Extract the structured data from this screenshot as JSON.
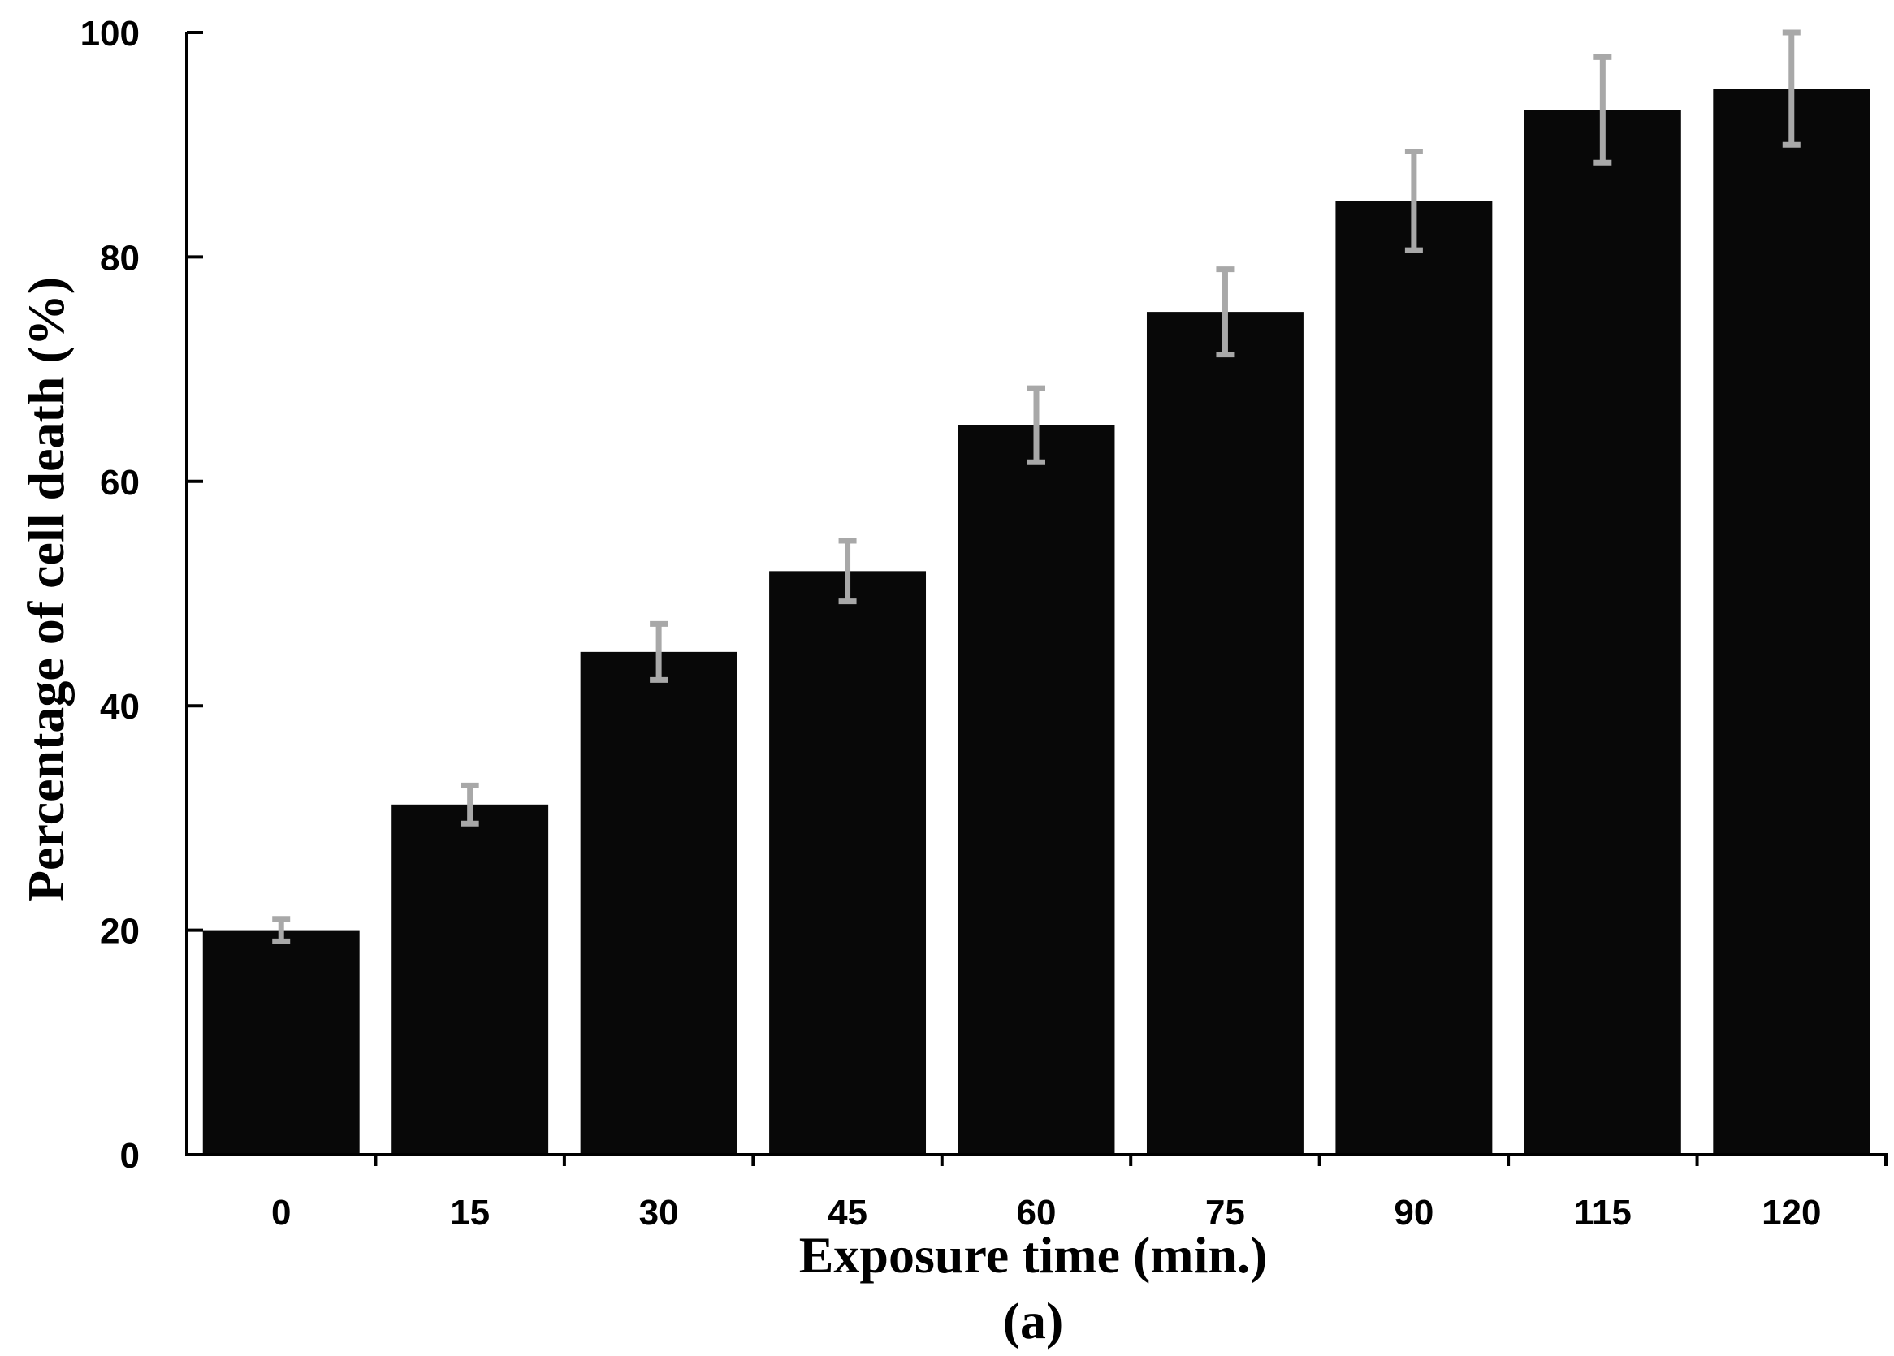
{
  "chart_data": {
    "type": "bar",
    "xlabel": "Exposure time (min.)",
    "ylabel": "Percentage of cell death (%)",
    "panel_label": "(a)",
    "categories": [
      "0",
      "15",
      "30",
      "45",
      "60",
      "75",
      "90",
      "115",
      "120"
    ],
    "values": [
      20,
      31.2,
      44.8,
      52,
      65,
      75.1,
      85,
      93.1,
      95
    ],
    "errors": [
      1,
      1.7,
      2.5,
      2.7,
      3.3,
      3.8,
      4.4,
      4.7,
      5
    ],
    "ylim": [
      0,
      100
    ],
    "yticks": [
      "0",
      "20",
      "40",
      "60",
      "80",
      "100"
    ],
    "bar_color": "#080808",
    "error_color": "#a8a8a8",
    "grid": false,
    "legend": "none"
  }
}
